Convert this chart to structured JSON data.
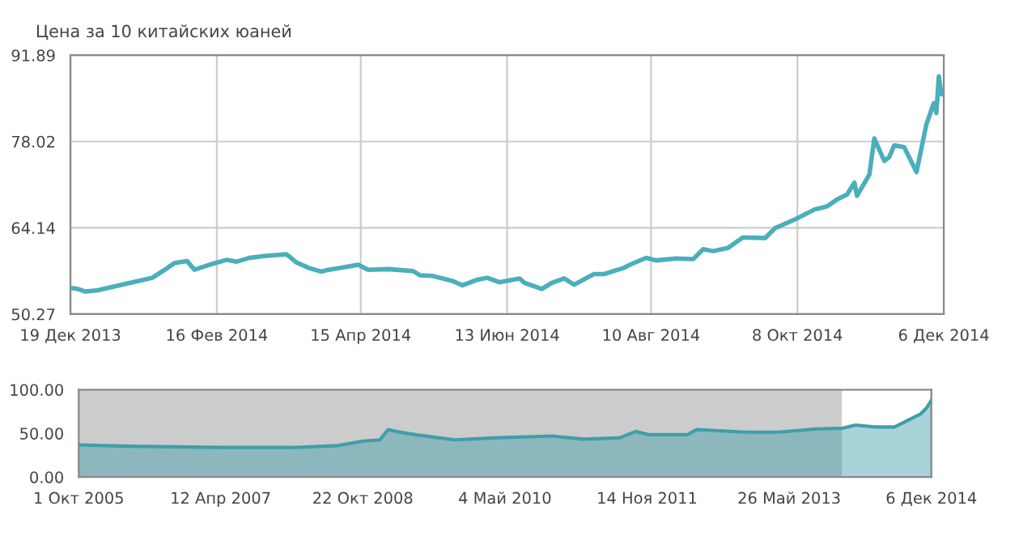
{
  "chart_data": [
    {
      "type": "line",
      "title": "Цена за 10 китайских юаней",
      "xlim": [
        "2013-12-19",
        "2014-12-06"
      ],
      "xticks": [
        {
          "value": "2013-12-19",
          "label": "19 Дек 2013"
        },
        {
          "value": "2014-02-16",
          "label": "16 Фев 2014"
        },
        {
          "value": "2014-04-15",
          "label": "15 Апр 2014"
        },
        {
          "value": "2014-06-13",
          "label": "13 Июн 2014"
        },
        {
          "value": "2014-08-10",
          "label": "10 Авг 2014"
        },
        {
          "value": "2014-10-08",
          "label": "8 Окт 2014"
        },
        {
          "value": "2014-12-06",
          "label": "6 Дек 2014"
        }
      ],
      "ylim": [
        50.27,
        91.89
      ],
      "yticks": [
        50.27,
        64.14,
        78.02,
        91.89
      ],
      "grid": true,
      "legend": false,
      "marker": "none",
      "line_style": "solid",
      "series": [
        {
          "color": "#4aafba",
          "x": [
            "2013-12-19",
            "2013-12-22",
            "2013-12-25",
            "2013-12-30",
            "2014-01-10",
            "2014-01-21",
            "2014-01-26",
            "2014-01-30",
            "2014-02-04",
            "2014-02-07",
            "2014-02-13",
            "2014-02-20",
            "2014-02-24",
            "2014-03-01",
            "2014-03-07",
            "2014-03-16",
            "2014-03-20",
            "2014-03-25",
            "2014-03-30",
            "2014-04-02",
            "2014-04-07",
            "2014-04-14",
            "2014-04-18",
            "2014-04-26",
            "2014-05-06",
            "2014-05-09",
            "2014-05-14",
            "2014-05-22",
            "2014-05-26",
            "2014-06-01",
            "2014-06-05",
            "2014-06-10",
            "2014-06-18",
            "2014-06-20",
            "2014-06-27",
            "2014-07-01",
            "2014-07-06",
            "2014-07-10",
            "2014-07-18",
            "2014-07-22",
            "2014-07-30",
            "2014-08-02",
            "2014-08-08",
            "2014-08-12",
            "2014-08-20",
            "2014-08-27",
            "2014-08-31",
            "2014-09-04",
            "2014-09-10",
            "2014-09-16",
            "2014-09-25",
            "2014-09-29",
            "2014-10-07",
            "2014-10-15",
            "2014-10-20",
            "2014-10-24",
            "2014-10-28",
            "2014-10-31",
            "2014-11-01",
            "2014-11-06",
            "2014-11-08",
            "2014-11-12",
            "2014-11-14",
            "2014-11-16",
            "2014-11-20",
            "2014-11-22",
            "2014-11-25",
            "2014-11-29",
            "2014-12-02",
            "2014-12-03",
            "2014-12-04",
            "2014-12-05",
            "2014-12-06"
          ],
          "values": [
            54.5,
            54.3,
            53.9,
            54.1,
            55.1,
            56.1,
            57.4,
            58.5,
            58.8,
            57.4,
            58.2,
            59.0,
            58.7,
            59.3,
            59.6,
            59.9,
            58.6,
            57.7,
            57.1,
            57.4,
            57.7,
            58.2,
            57.4,
            57.5,
            57.2,
            56.5,
            56.4,
            55.6,
            54.9,
            55.8,
            56.1,
            55.4,
            56.0,
            55.3,
            54.3,
            55.3,
            56.0,
            55.0,
            56.7,
            56.7,
            57.7,
            58.3,
            59.3,
            58.9,
            59.2,
            59.1,
            60.7,
            60.4,
            60.9,
            62.6,
            62.5,
            64.1,
            65.5,
            67.1,
            67.6,
            68.7,
            69.5,
            71.4,
            69.3,
            72.7,
            78.5,
            74.9,
            75.5,
            77.4,
            77.1,
            75.5,
            73.1,
            80.8,
            84.2,
            82.6,
            88.5,
            85.6,
            85.6
          ]
        }
      ]
    },
    {
      "type": "area",
      "xlim": [
        "2005-10-01",
        "2014-12-06"
      ],
      "xticks": [
        {
          "value": "2005-10-01",
          "label": "1 Окт 2005"
        },
        {
          "value": "2007-04-12",
          "label": "12 Апр 2007"
        },
        {
          "value": "2008-10-22",
          "label": "22 Окт 2008"
        },
        {
          "value": "2010-05-04",
          "label": "4 Май 2010"
        },
        {
          "value": "2011-11-14",
          "label": "14 Ноя 2011"
        },
        {
          "value": "2013-05-26",
          "label": "26 Май 2013"
        },
        {
          "value": "2014-12-06",
          "label": "6 Дек 2014"
        }
      ],
      "ylim": [
        0,
        100
      ],
      "yticks": [
        {
          "value": 0,
          "label": "0.00"
        },
        {
          "value": 50,
          "label": "50.00"
        },
        {
          "value": 100,
          "label": "100.00"
        }
      ],
      "grid": "x",
      "legend": false,
      "bands": [
        {
          "axis": "x",
          "from": "2005-10-01",
          "to": "2013-12-19",
          "color": "#cccccc"
        }
      ],
      "series": [
        {
          "color": "#3f9eaa",
          "x": [
            "2005-10-01",
            "2006-04-23",
            "2007-05-10",
            "2008-01-19",
            "2008-07-15",
            "2008-10-25",
            "2008-12-28",
            "2009-01-30",
            "2009-03-02",
            "2009-05-17",
            "2009-10-17",
            "2010-03-18",
            "2010-11-03",
            "2011-03-10",
            "2011-07-28",
            "2011-09-30",
            "2011-11-19",
            "2012-04-20",
            "2012-05-28",
            "2012-12-05",
            "2013-04-12",
            "2013-09-11",
            "2013-12-22",
            "2014-02-11",
            "2014-04-29",
            "2014-07-14",
            "2014-10-24",
            "2014-11-18",
            "2014-12-06"
          ],
          "values": [
            36.8,
            35.3,
            33.8,
            33.8,
            36.0,
            41.2,
            42.6,
            54.4,
            52.2,
            48.5,
            42.6,
            44.8,
            47.0,
            43.4,
            44.8,
            52.2,
            48.5,
            48.5,
            54.4,
            51.4,
            51.4,
            55.1,
            55.9,
            59.5,
            57.3,
            57.3,
            72.0,
            79.4,
            88.0
          ]
        }
      ]
    }
  ]
}
